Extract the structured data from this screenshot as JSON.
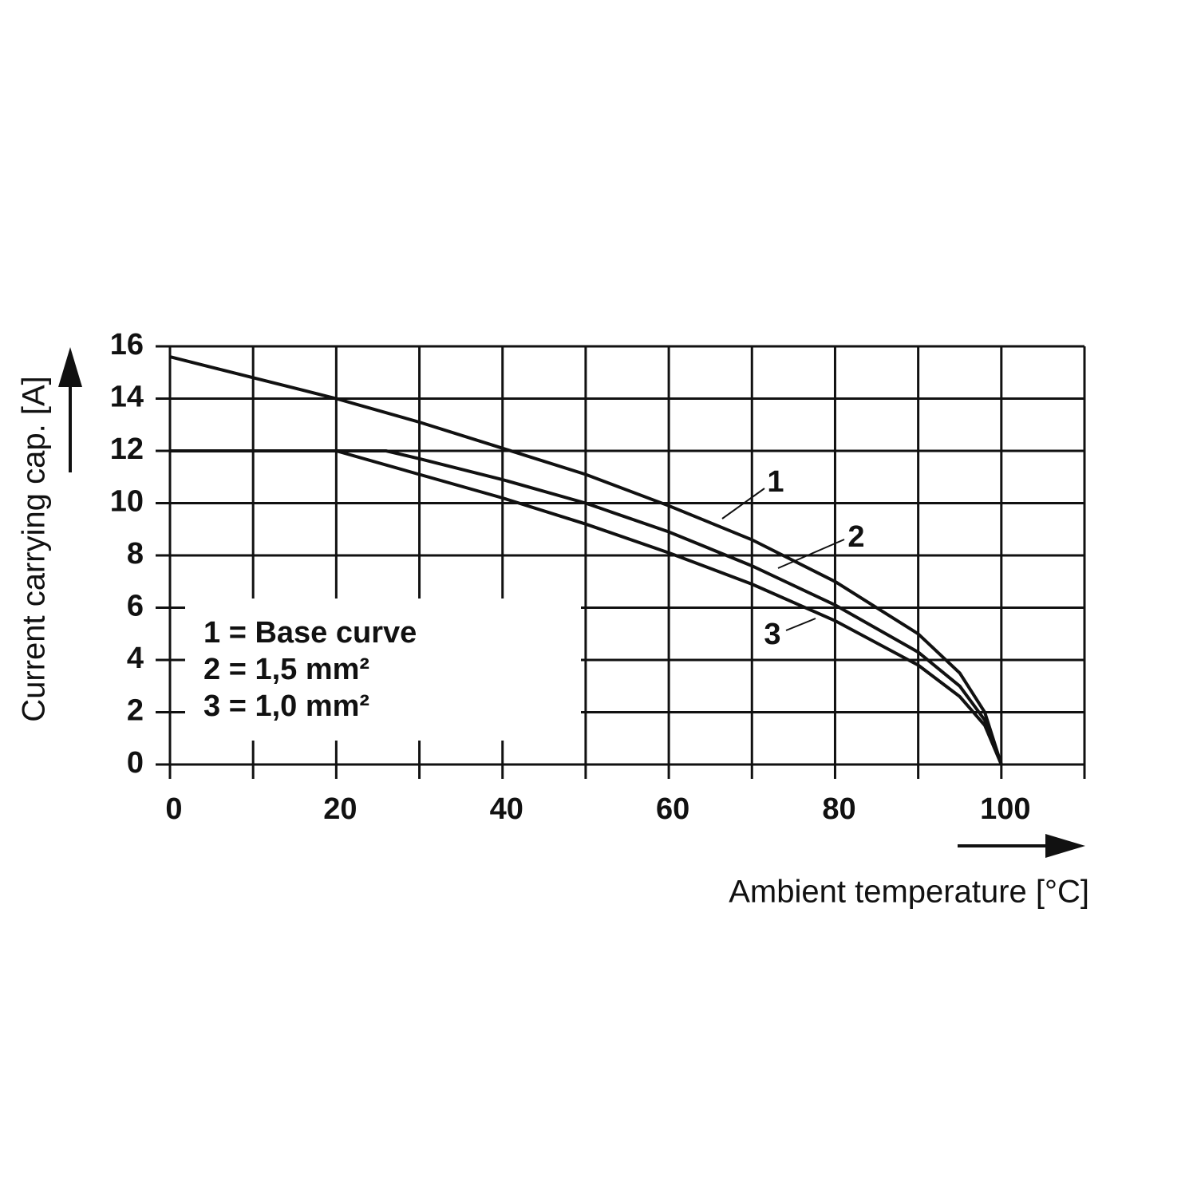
{
  "chart_data": {
    "type": "line",
    "x_label": "Ambient temperature [°C]",
    "y_label": "Current carrying cap. [A]",
    "xlim": [
      0,
      110
    ],
    "xticks": [
      0,
      20,
      40,
      60,
      80,
      100
    ],
    "x_minor_ticks": [
      10,
      30,
      50,
      70,
      90,
      110
    ],
    "ylim": [
      0,
      16
    ],
    "yticks": [
      0,
      2,
      4,
      6,
      8,
      10,
      12,
      14,
      16
    ],
    "grid": true,
    "legend_items": [
      "1 = Base curve",
      "2 = 1,5 mm²",
      "3 = 1,0 mm²"
    ],
    "series": [
      {
        "name": "1",
        "color": "#111111",
        "x": [
          0,
          10,
          20,
          30,
          40,
          50,
          60,
          70,
          80,
          90,
          95,
          98,
          100
        ],
        "values": [
          15.6,
          14.8,
          14,
          13.1,
          12.1,
          11.1,
          9.9,
          8.6,
          7,
          5,
          3.5,
          2,
          0
        ]
      },
      {
        "name": "2",
        "color": "#111111",
        "x": [
          0,
          20,
          26,
          30,
          40,
          50,
          60,
          70,
          80,
          90,
          95,
          98,
          100
        ],
        "values": [
          12,
          12,
          12,
          11.7,
          10.9,
          10,
          8.9,
          7.6,
          6.1,
          4.3,
          3,
          1.7,
          0
        ]
      },
      {
        "name": "3",
        "color": "#111111",
        "x": [
          0,
          20,
          30,
          40,
          50,
          60,
          70,
          80,
          90,
          95,
          98,
          100
        ],
        "values": [
          12,
          12,
          11.1,
          10.2,
          9.2,
          8.1,
          6.9,
          5.5,
          3.8,
          2.6,
          1.5,
          0
        ]
      }
    ]
  }
}
